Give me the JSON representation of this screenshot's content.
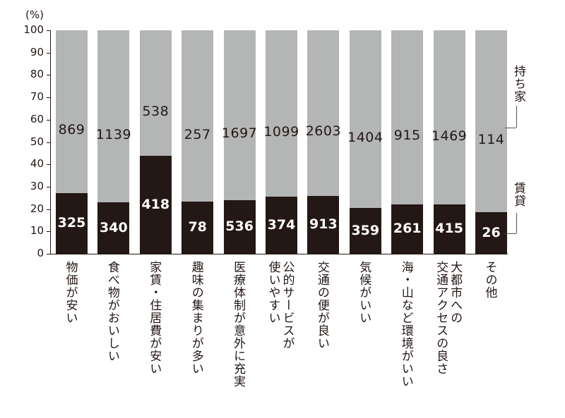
{
  "chart_data": {
    "type": "bar",
    "stacked": true,
    "normalized_percent": true,
    "title": "",
    "unit_label": "(%)",
    "xlabel": "",
    "ylabel": "(%)",
    "ylim": [
      0,
      100
    ],
    "yticks": [
      0,
      10,
      20,
      30,
      40,
      50,
      60,
      70,
      80,
      90,
      100
    ],
    "grid": false,
    "categories": [
      "物価が安い",
      "食べ物がおいしい",
      "家賃・住居費が安い",
      "趣味の集まりが多い",
      "医療体制が意外に充実",
      "公的サービスが\n使いやすい",
      "交通の便が良い",
      "気候がいい",
      "海・山など環境がいい",
      "大都市への\n交通アクセスの良さ",
      "その他"
    ],
    "series": [
      {
        "name": "賃貸",
        "color": "#231815",
        "counts": [
          325,
          340,
          418,
          78,
          536,
          374,
          913,
          359,
          261,
          415,
          26
        ],
        "values_percent": [
          27.2,
          23.0,
          43.7,
          23.3,
          24.0,
          25.4,
          26.0,
          20.4,
          22.2,
          22.0,
          18.6
        ]
      },
      {
        "name": "持ち家",
        "color": "#b4b5b5",
        "counts": [
          869,
          1139,
          538,
          257,
          1697,
          1099,
          2603,
          1404,
          915,
          1469,
          114
        ],
        "values_percent": [
          72.8,
          77.0,
          56.3,
          76.7,
          76.0,
          74.6,
          74.0,
          79.6,
          77.8,
          78.0,
          81.4
        ]
      }
    ],
    "legend": {
      "position": "right",
      "entries": [
        "持ち家",
        "賃貸"
      ]
    }
  },
  "legend": {
    "own": "持ち家",
    "rent": "賃貸"
  }
}
